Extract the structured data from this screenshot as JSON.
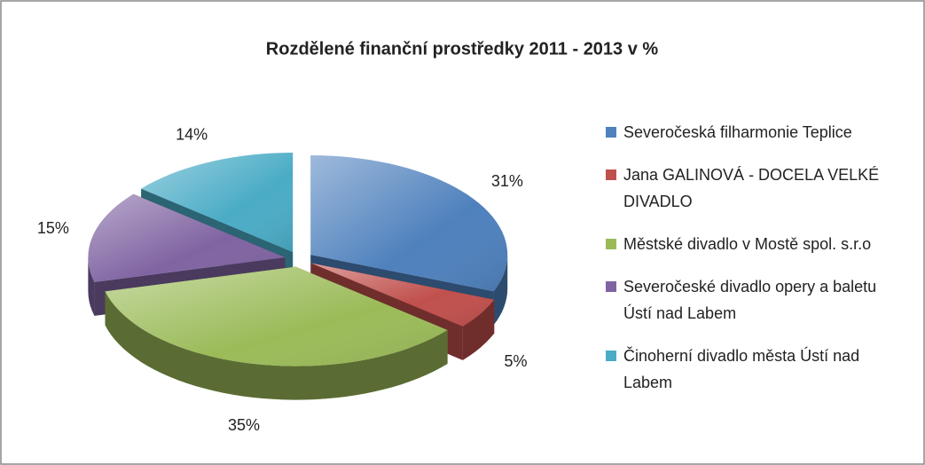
{
  "chart_data": {
    "type": "pie3d",
    "title": "Rozdělené finanční prostředky 2011 - 2013 v %",
    "categories": [
      "Severočeská filharmonie Teplice",
      "Jana GALINOVÁ - DOCELA VELKÉ DIVADLO",
      "Městské divadlo v Mostě spol. s.r.o",
      "Severočeské divadlo opery a baletu Ústí nad Labem",
      "Činoherní divadlo města Ústí nad Labem"
    ],
    "values": [
      31,
      5,
      35,
      15,
      14
    ],
    "value_labels": [
      "31%",
      "5%",
      "35%",
      "15%",
      "14%"
    ],
    "colors": [
      "#4f81bd",
      "#c0504d",
      "#9bbb59",
      "#8064a2",
      "#4bacc6"
    ],
    "legend": "right"
  }
}
